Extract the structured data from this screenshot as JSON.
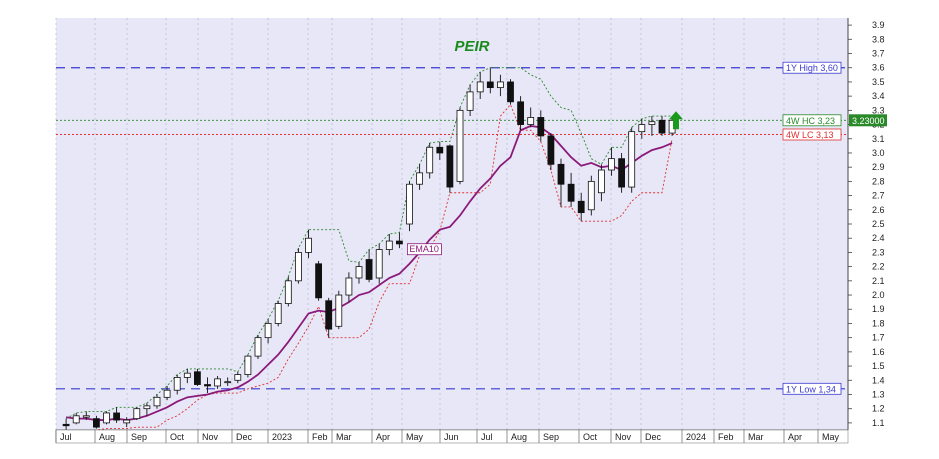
{
  "chart_data": {
    "type": "candlestick",
    "title": "PEIR",
    "ylim": [
      1.05,
      3.95
    ],
    "y_ticks": [
      "1.1",
      "1.2",
      "1.3",
      "1.4",
      "1.5",
      "1.6",
      "1.7",
      "1.8",
      "1.9",
      "2.0",
      "2.1",
      "2.2",
      "2.3",
      "2.4",
      "2.5",
      "2.6",
      "2.7",
      "2.8",
      "2.9",
      "3.0",
      "3.1",
      "3.2",
      "3.3",
      "3.4",
      "3.5",
      "3.6",
      "3.7",
      "3.8",
      "3.9"
    ],
    "x_ticks": [
      "Jul",
      "Aug",
      "Sep",
      "Oct",
      "Nov",
      "Dec",
      "2023",
      "Feb",
      "Mar",
      "Apr",
      "May",
      "Jun",
      "Jul",
      "Aug",
      "Sep",
      "Oct",
      "Nov",
      "Dec",
      "2024",
      "Feb",
      "Mar",
      "Apr",
      "May"
    ],
    "last_price": "3.23000",
    "colors": {
      "up": "#ffffff",
      "down": "#111111",
      "ema": "#8b1a7a",
      "high": "#3a3ad0",
      "hc": "#2a8a2a",
      "lc": "#e03030",
      "title": "#1a8a1a",
      "arrow": "#1a9a1a",
      "plot_bg": "#e7e7f8"
    },
    "levels": [
      {
        "name": "1Y High",
        "label": "1Y High 3,60",
        "value": 3.6
      },
      {
        "name": "4W HC",
        "label": "4W HC 3,23",
        "value": 3.23
      },
      {
        "name": "4W LC",
        "label": "4W LC 3,13",
        "value": 3.13
      },
      {
        "name": "1Y Low",
        "label": "1Y Low 1,34",
        "value": 1.34
      }
    ],
    "ema_label": "EMA10",
    "candles": [
      {
        "week": 1,
        "o": 1.09,
        "h": 1.13,
        "l": 1.05,
        "c": 1.08
      },
      {
        "week": 2,
        "o": 1.1,
        "h": 1.17,
        "l": 1.09,
        "c": 1.15
      },
      {
        "week": 3,
        "o": 1.14,
        "h": 1.18,
        "l": 1.12,
        "c": 1.15
      },
      {
        "week": 4,
        "o": 1.13,
        "h": 1.15,
        "l": 1.06,
        "c": 1.07
      },
      {
        "week": 5,
        "o": 1.1,
        "h": 1.18,
        "l": 1.09,
        "c": 1.17
      },
      {
        "week": 6,
        "o": 1.17,
        "h": 1.21,
        "l": 1.1,
        "c": 1.12
      },
      {
        "week": 7,
        "o": 1.1,
        "h": 1.14,
        "l": 1.07,
        "c": 1.12
      },
      {
        "week": 8,
        "o": 1.13,
        "h": 1.21,
        "l": 1.12,
        "c": 1.2
      },
      {
        "week": 9,
        "o": 1.2,
        "h": 1.24,
        "l": 1.15,
        "c": 1.22
      },
      {
        "week": 10,
        "o": 1.22,
        "h": 1.3,
        "l": 1.2,
        "c": 1.28
      },
      {
        "week": 11,
        "o": 1.28,
        "h": 1.36,
        "l": 1.26,
        "c": 1.33
      },
      {
        "week": 12,
        "o": 1.33,
        "h": 1.44,
        "l": 1.3,
        "c": 1.42
      },
      {
        "week": 13,
        "o": 1.42,
        "h": 1.48,
        "l": 1.38,
        "c": 1.45
      },
      {
        "week": 14,
        "o": 1.46,
        "h": 1.48,
        "l": 1.36,
        "c": 1.37
      },
      {
        "week": 15,
        "o": 1.37,
        "h": 1.42,
        "l": 1.31,
        "c": 1.36
      },
      {
        "week": 16,
        "o": 1.36,
        "h": 1.43,
        "l": 1.34,
        "c": 1.41
      },
      {
        "week": 17,
        "o": 1.39,
        "h": 1.42,
        "l": 1.36,
        "c": 1.39
      },
      {
        "week": 18,
        "o": 1.4,
        "h": 1.46,
        "l": 1.38,
        "c": 1.44
      },
      {
        "week": 19,
        "o": 1.44,
        "h": 1.58,
        "l": 1.42,
        "c": 1.57
      },
      {
        "week": 20,
        "o": 1.57,
        "h": 1.72,
        "l": 1.55,
        "c": 1.7
      },
      {
        "week": 21,
        "o": 1.7,
        "h": 1.83,
        "l": 1.66,
        "c": 1.8
      },
      {
        "week": 22,
        "o": 1.8,
        "h": 1.96,
        "l": 1.78,
        "c": 1.94
      },
      {
        "week": 23,
        "o": 1.94,
        "h": 2.13,
        "l": 1.92,
        "c": 2.1
      },
      {
        "week": 24,
        "o": 2.1,
        "h": 2.33,
        "l": 2.08,
        "c": 2.3
      },
      {
        "week": 25,
        "o": 2.3,
        "h": 2.46,
        "l": 2.26,
        "c": 2.4
      },
      {
        "week": 26,
        "o": 2.22,
        "h": 2.24,
        "l": 1.96,
        "c": 1.98
      },
      {
        "week": 27,
        "o": 1.96,
        "h": 1.98,
        "l": 1.7,
        "c": 1.76
      },
      {
        "week": 28,
        "o": 1.78,
        "h": 2.03,
        "l": 1.76,
        "c": 2.0
      },
      {
        "week": 29,
        "o": 2.0,
        "h": 2.16,
        "l": 1.95,
        "c": 2.12
      },
      {
        "week": 30,
        "o": 2.12,
        "h": 2.23,
        "l": 2.08,
        "c": 2.2
      },
      {
        "week": 31,
        "o": 2.25,
        "h": 2.32,
        "l": 2.09,
        "c": 2.11
      },
      {
        "week": 32,
        "o": 2.12,
        "h": 2.36,
        "l": 2.08,
        "c": 2.32
      },
      {
        "week": 33,
        "o": 2.32,
        "h": 2.43,
        "l": 2.28,
        "c": 2.38
      },
      {
        "week": 34,
        "o": 2.38,
        "h": 2.44,
        "l": 2.33,
        "c": 2.36
      },
      {
        "week": 35,
        "o": 2.5,
        "h": 2.8,
        "l": 2.45,
        "c": 2.78
      },
      {
        "week": 36,
        "o": 2.78,
        "h": 2.92,
        "l": 2.74,
        "c": 2.86
      },
      {
        "week": 37,
        "o": 2.86,
        "h": 3.07,
        "l": 2.82,
        "c": 3.04
      },
      {
        "week": 38,
        "o": 3.04,
        "h": 3.08,
        "l": 2.95,
        "c": 3.0
      },
      {
        "week": 39,
        "o": 3.05,
        "h": 3.06,
        "l": 2.72,
        "c": 2.76
      },
      {
        "week": 40,
        "o": 2.8,
        "h": 3.32,
        "l": 2.78,
        "c": 3.3
      },
      {
        "week": 41,
        "o": 3.3,
        "h": 3.48,
        "l": 3.26,
        "c": 3.43
      },
      {
        "week": 42,
        "o": 3.43,
        "h": 3.57,
        "l": 3.38,
        "c": 3.5
      },
      {
        "week": 43,
        "o": 3.5,
        "h": 3.6,
        "l": 3.42,
        "c": 3.46
      },
      {
        "week": 44,
        "o": 3.46,
        "h": 3.55,
        "l": 3.4,
        "c": 3.5
      },
      {
        "week": 45,
        "o": 3.5,
        "h": 3.52,
        "l": 3.34,
        "c": 3.36
      },
      {
        "week": 46,
        "o": 3.36,
        "h": 3.4,
        "l": 3.16,
        "c": 3.2
      },
      {
        "week": 47,
        "o": 3.2,
        "h": 3.32,
        "l": 3.18,
        "c": 3.25
      },
      {
        "week": 48,
        "o": 3.25,
        "h": 3.3,
        "l": 3.08,
        "c": 3.12
      },
      {
        "week": 49,
        "o": 3.12,
        "h": 3.14,
        "l": 2.88,
        "c": 2.92
      },
      {
        "week": 50,
        "o": 2.92,
        "h": 2.96,
        "l": 2.62,
        "c": 2.78
      },
      {
        "week": 51,
        "o": 2.78,
        "h": 2.86,
        "l": 2.62,
        "c": 2.66
      },
      {
        "week": 52,
        "o": 2.66,
        "h": 2.72,
        "l": 2.52,
        "c": 2.58
      },
      {
        "week": 53,
        "o": 2.6,
        "h": 2.84,
        "l": 2.56,
        "c": 2.8
      },
      {
        "week": 54,
        "o": 2.72,
        "h": 2.92,
        "l": 2.66,
        "c": 2.88
      },
      {
        "week": 55,
        "o": 2.88,
        "h": 3.04,
        "l": 2.84,
        "c": 2.96
      },
      {
        "week": 56,
        "o": 2.96,
        "h": 3.0,
        "l": 2.72,
        "c": 2.76
      },
      {
        "week": 57,
        "o": 2.76,
        "h": 3.18,
        "l": 2.72,
        "c": 3.15
      },
      {
        "week": 58,
        "o": 3.15,
        "h": 3.24,
        "l": 3.1,
        "c": 3.2
      },
      {
        "week": 59,
        "o": 3.2,
        "h": 3.26,
        "l": 3.12,
        "c": 3.22
      },
      {
        "week": 60,
        "o": 3.23,
        "h": 3.26,
        "l": 3.12,
        "c": 3.14
      },
      {
        "week": 61,
        "o": 3.14,
        "h": 3.25,
        "l": 3.12,
        "c": 3.23
      }
    ],
    "ema10": [
      1.14,
      1.13,
      1.13,
      1.12,
      1.12,
      1.13,
      1.12,
      1.13,
      1.15,
      1.18,
      1.21,
      1.25,
      1.28,
      1.29,
      1.3,
      1.32,
      1.33,
      1.35,
      1.39,
      1.44,
      1.51,
      1.58,
      1.67,
      1.77,
      1.87,
      1.89,
      1.88,
      1.91,
      1.95,
      2.0,
      2.02,
      2.07,
      2.12,
      2.15,
      2.22,
      2.3,
      2.39,
      2.46,
      2.48,
      2.56,
      2.66,
      2.75,
      2.82,
      2.91,
      2.97,
      3.16,
      3.19,
      3.18,
      3.13,
      3.05,
      2.97,
      2.91,
      2.93,
      2.9,
      2.91,
      2.88,
      2.93,
      2.98,
      3.02,
      3.04,
      3.07
    ]
  }
}
